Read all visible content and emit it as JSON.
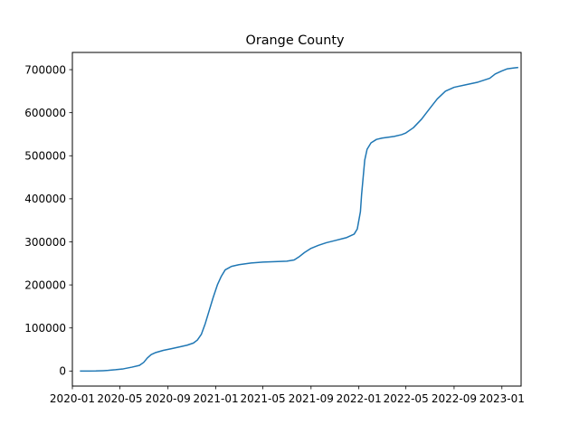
{
  "chart_data": {
    "type": "line",
    "title": "Orange County",
    "xlabel": "",
    "ylabel": "",
    "x_axis": {
      "scale": "date",
      "range": [
        "2020-01-01",
        "2023-02-19"
      ],
      "ticks": [
        {
          "date": "2020-01-01",
          "label": "2020-01"
        },
        {
          "date": "2020-05-01",
          "label": "2020-05"
        },
        {
          "date": "2020-09-01",
          "label": "2020-09"
        },
        {
          "date": "2021-01-01",
          "label": "2021-01"
        },
        {
          "date": "2021-05-01",
          "label": "2021-05"
        },
        {
          "date": "2021-09-01",
          "label": "2021-09"
        },
        {
          "date": "2022-01-01",
          "label": "2022-01"
        },
        {
          "date": "2022-05-01",
          "label": "2022-05"
        },
        {
          "date": "2022-09-01",
          "label": "2022-09"
        },
        {
          "date": "2023-01-01",
          "label": "2023-01"
        }
      ]
    },
    "y_axis": {
      "scale": "linear",
      "range": [
        -35000,
        740000
      ],
      "ticks": [
        {
          "value": 0,
          "label": "0"
        },
        {
          "value": 100000,
          "label": "100000"
        },
        {
          "value": 200000,
          "label": "200000"
        },
        {
          "value": 300000,
          "label": "300000"
        },
        {
          "value": 400000,
          "label": "400000"
        },
        {
          "value": 500000,
          "label": "500000"
        },
        {
          "value": 600000,
          "label": "600000"
        },
        {
          "value": 700000,
          "label": "700000"
        }
      ]
    },
    "grid": false,
    "legend": "none",
    "series": [
      {
        "color": "#1f77b4",
        "points": [
          [
            "2020-01-22",
            0
          ],
          [
            "2020-02-15",
            10
          ],
          [
            "2020-03-01",
            100
          ],
          [
            "2020-03-20",
            800
          ],
          [
            "2020-04-01",
            1500
          ],
          [
            "2020-04-20",
            3000
          ],
          [
            "2020-05-10",
            5000
          ],
          [
            "2020-06-01",
            9000
          ],
          [
            "2020-06-20",
            13000
          ],
          [
            "2020-07-01",
            20000
          ],
          [
            "2020-07-10",
            30000
          ],
          [
            "2020-07-20",
            38000
          ],
          [
            "2020-08-01",
            43000
          ],
          [
            "2020-08-20",
            48000
          ],
          [
            "2020-09-10",
            52000
          ],
          [
            "2020-10-01",
            56000
          ],
          [
            "2020-10-20",
            60000
          ],
          [
            "2020-11-05",
            65000
          ],
          [
            "2020-11-15",
            72000
          ],
          [
            "2020-11-25",
            85000
          ],
          [
            "2020-12-05",
            110000
          ],
          [
            "2020-12-15",
            140000
          ],
          [
            "2020-12-25",
            170000
          ],
          [
            "2021-01-05",
            200000
          ],
          [
            "2021-01-15",
            220000
          ],
          [
            "2021-01-25",
            235000
          ],
          [
            "2021-02-10",
            243000
          ],
          [
            "2021-03-01",
            247000
          ],
          [
            "2021-04-01",
            251000
          ],
          [
            "2021-05-01",
            253000
          ],
          [
            "2021-06-01",
            254000
          ],
          [
            "2021-07-01",
            255000
          ],
          [
            "2021-07-20",
            258000
          ],
          [
            "2021-08-01",
            265000
          ],
          [
            "2021-08-15",
            275000
          ],
          [
            "2021-09-01",
            285000
          ],
          [
            "2021-09-20",
            292000
          ],
          [
            "2021-10-10",
            298000
          ],
          [
            "2021-11-01",
            303000
          ],
          [
            "2021-12-01",
            310000
          ],
          [
            "2021-12-20",
            318000
          ],
          [
            "2021-12-28",
            330000
          ],
          [
            "2022-01-01",
            350000
          ],
          [
            "2022-01-05",
            370000
          ],
          [
            "2022-01-08",
            410000
          ],
          [
            "2022-01-12",
            450000
          ],
          [
            "2022-01-16",
            490000
          ],
          [
            "2022-01-22",
            515000
          ],
          [
            "2022-02-01",
            530000
          ],
          [
            "2022-02-15",
            538000
          ],
          [
            "2022-03-01",
            541000
          ],
          [
            "2022-04-01",
            545000
          ],
          [
            "2022-04-20",
            549000
          ],
          [
            "2022-05-01",
            553000
          ],
          [
            "2022-05-20",
            565000
          ],
          [
            "2022-06-10",
            585000
          ],
          [
            "2022-07-01",
            610000
          ],
          [
            "2022-07-20",
            632000
          ],
          [
            "2022-08-10",
            650000
          ],
          [
            "2022-09-01",
            659000
          ],
          [
            "2022-10-01",
            665000
          ],
          [
            "2022-11-01",
            671000
          ],
          [
            "2022-12-01",
            680000
          ],
          [
            "2022-12-15",
            690000
          ],
          [
            "2023-01-01",
            697000
          ],
          [
            "2023-01-15",
            702000
          ],
          [
            "2023-02-01",
            704000
          ],
          [
            "2023-02-10",
            705000
          ]
        ]
      }
    ]
  }
}
